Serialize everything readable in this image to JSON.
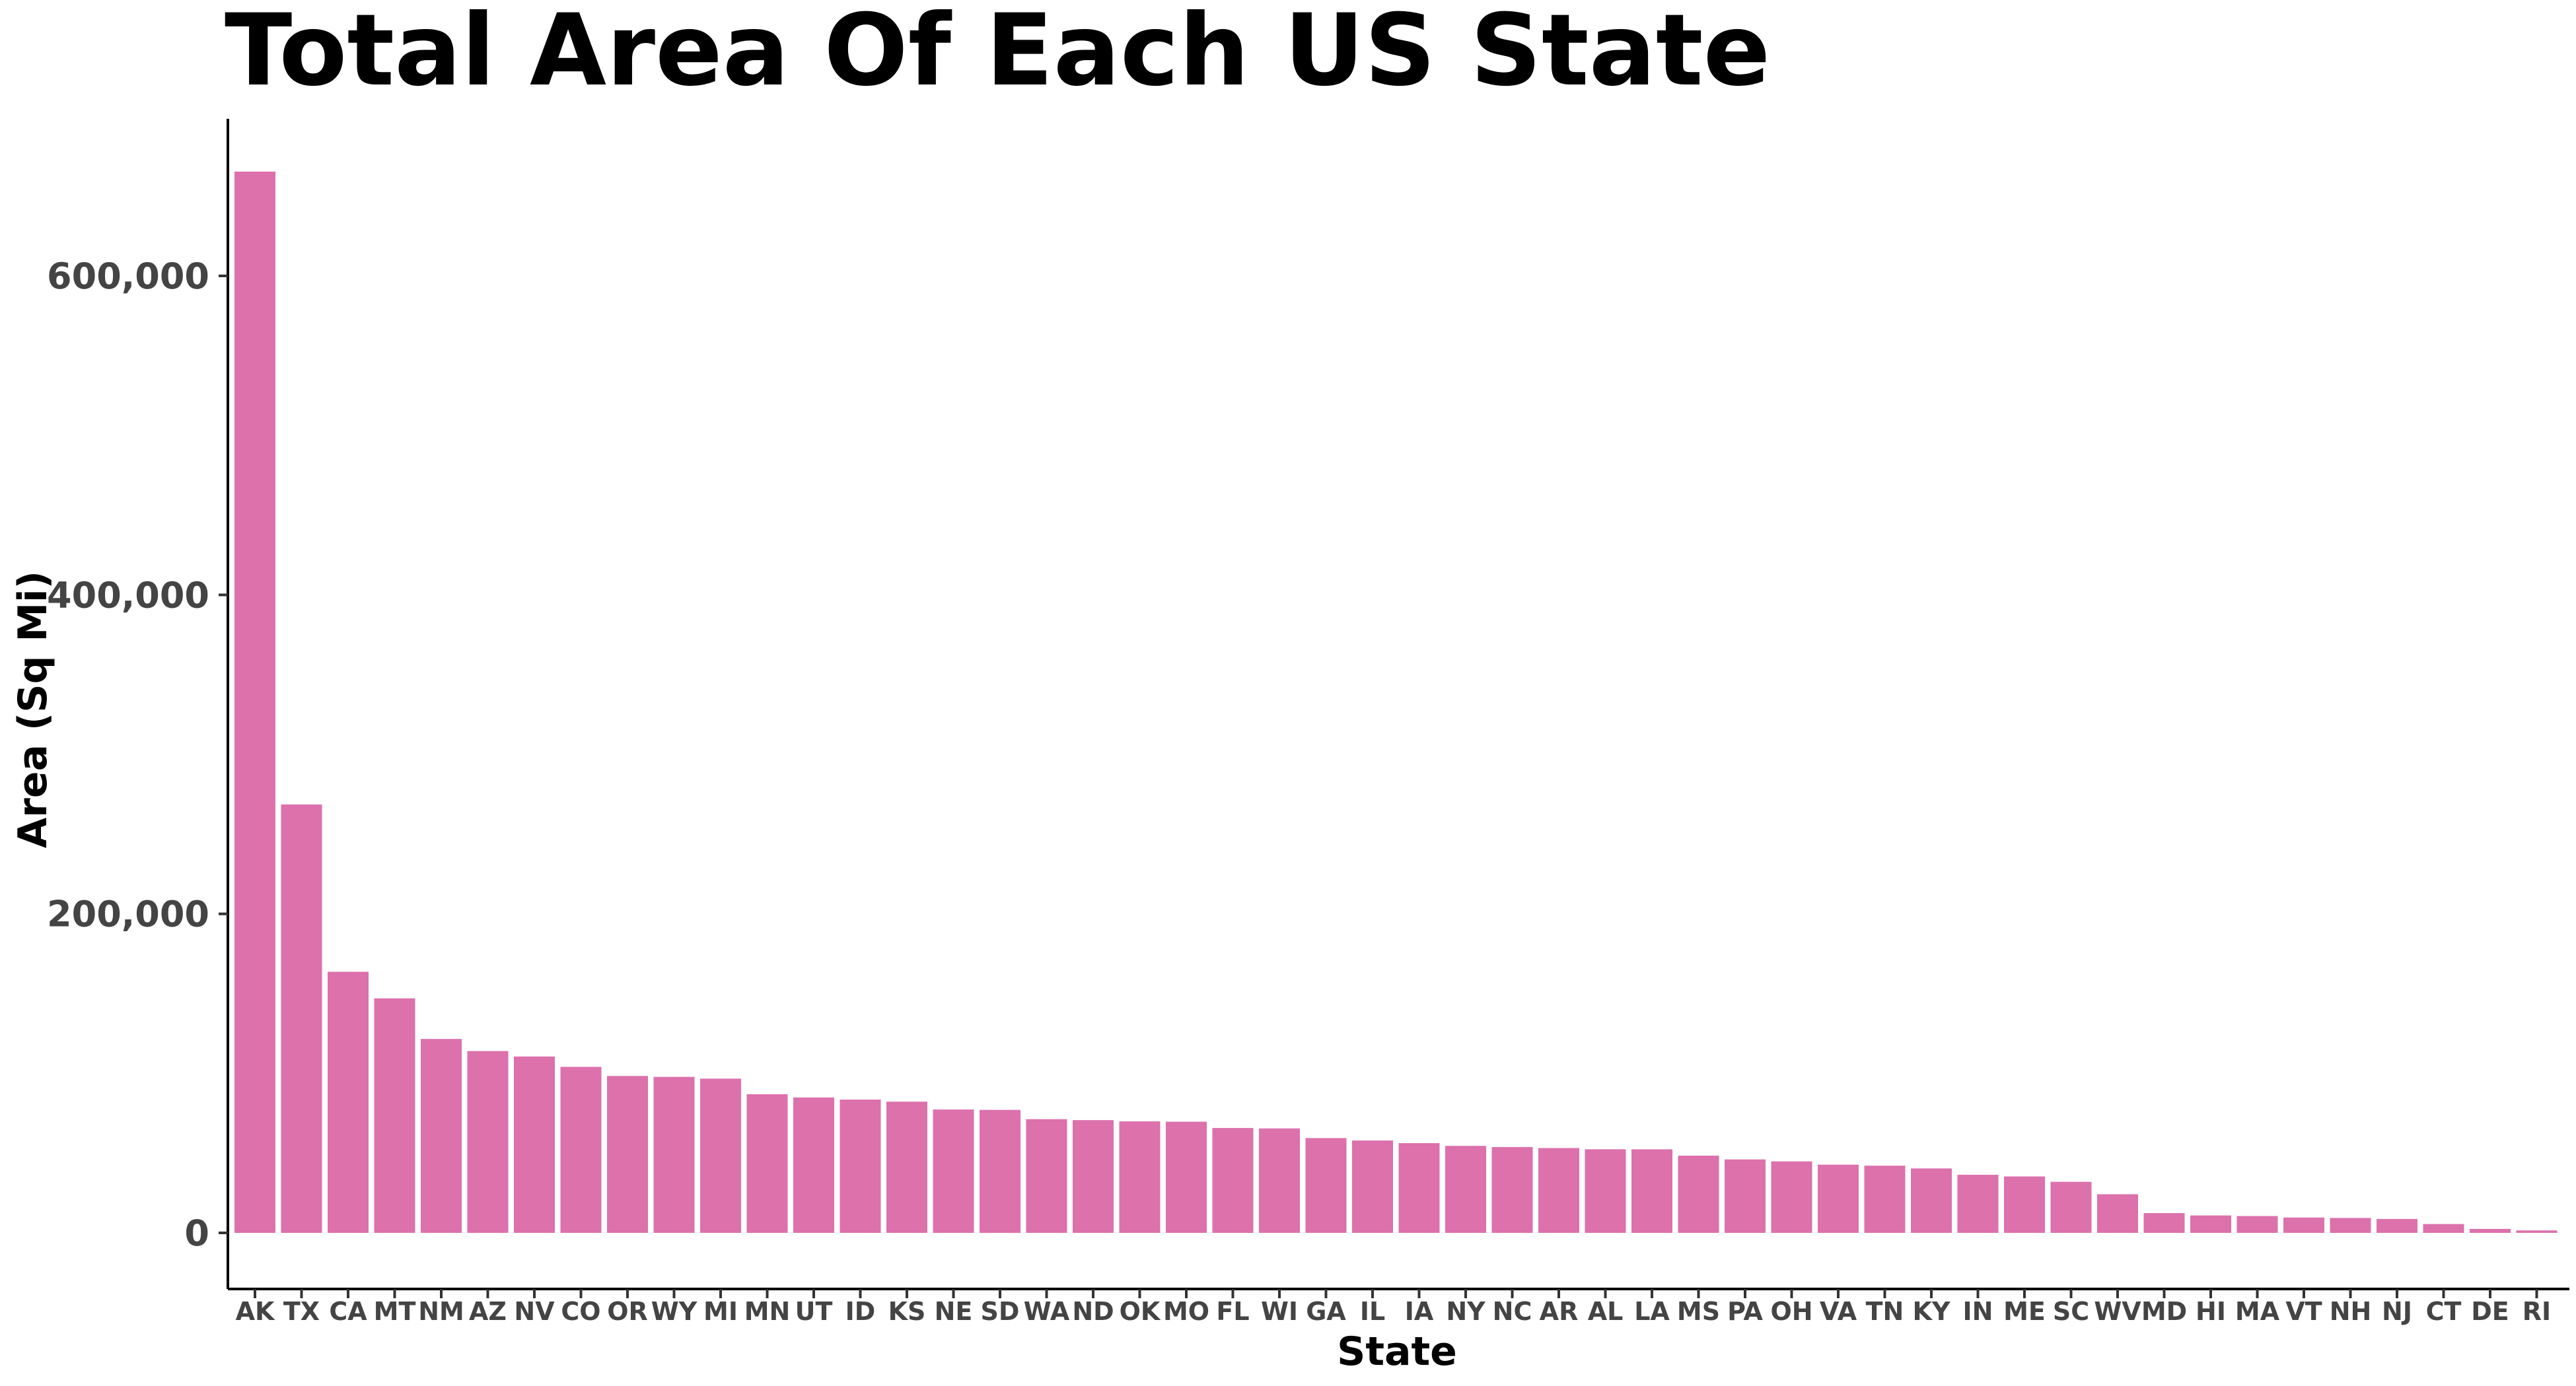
{
  "chart_data": {
    "type": "bar",
    "title": "Total Area Of Each US State",
    "xlabel": "State",
    "ylabel": "Area (Sq Mi)",
    "ylim": [
      0,
      700000
    ],
    "yticks": [
      0,
      200000,
      400000,
      600000
    ],
    "ytick_labels": [
      "0",
      "200,000",
      "400,000",
      "600,000"
    ],
    "grid": false,
    "bar_color": "#DC71AC",
    "categories": [
      "AK",
      "TX",
      "CA",
      "MT",
      "NM",
      "AZ",
      "NV",
      "CO",
      "OR",
      "WY",
      "MI",
      "MN",
      "UT",
      "ID",
      "KS",
      "NE",
      "SD",
      "WA",
      "ND",
      "OK",
      "MO",
      "FL",
      "WI",
      "GA",
      "IL",
      "IA",
      "NY",
      "NC",
      "AR",
      "AL",
      "LA",
      "MS",
      "PA",
      "OH",
      "VA",
      "TN",
      "KY",
      "IN",
      "ME",
      "SC",
      "WV",
      "MD",
      "HI",
      "MA",
      "VT",
      "NH",
      "NJ",
      "CT",
      "DE",
      "RI"
    ],
    "values": [
      665384,
      268596,
      163695,
      147040,
      121590,
      113990,
      110572,
      104094,
      98379,
      97813,
      96714,
      86936,
      84897,
      83569,
      82278,
      77348,
      77116,
      71298,
      70698,
      69899,
      69707,
      65758,
      65496,
      59425,
      57914,
      56273,
      54555,
      53819,
      53179,
      52420,
      52378,
      48432,
      46054,
      44826,
      42775,
      42144,
      40408,
      36420,
      35380,
      32020,
      24230,
      12406,
      10932,
      10554,
      9616,
      9349,
      8723,
      5543,
      2489,
      1545
    ]
  }
}
